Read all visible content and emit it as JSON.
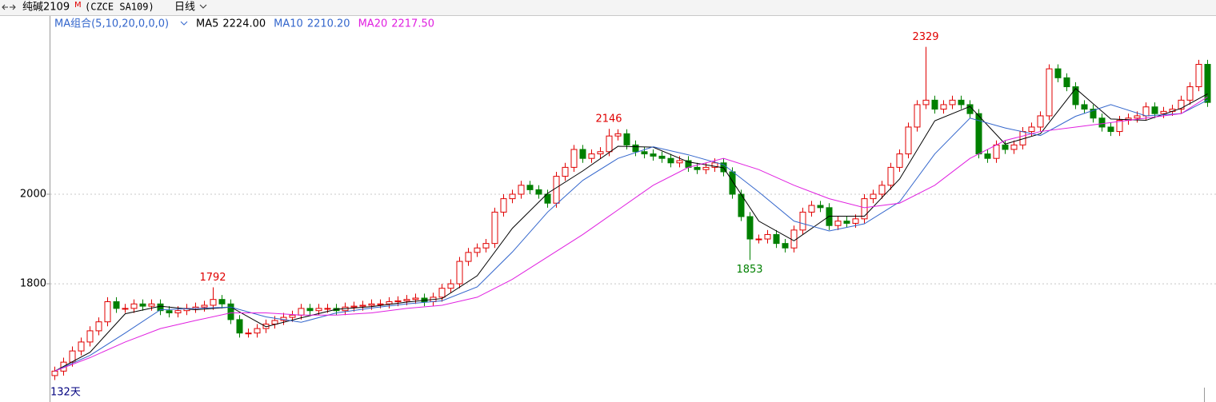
{
  "chart_data": {
    "type": "candlestick",
    "instrument": "纯碱2109",
    "flag": "M",
    "code": "(CZCE SA109)",
    "period": "日线",
    "indicator": "MA组合(5,10,20,0,0,0)",
    "footer_label": "132天",
    "up_color": "#e00000",
    "down_color": "#008000",
    "ylim": [
      1536,
      2398
    ],
    "yticks": [
      1800,
      2000
    ],
    "grid": true,
    "marked_highs": [
      18,
      63,
      99
    ],
    "marked_lows": [
      79
    ],
    "open": [
      1595,
      1605,
      1625,
      1650,
      1670,
      1695,
      1715,
      1760,
      1745,
      1745,
      1755,
      1750,
      1755,
      1740,
      1735,
      1740,
      1745,
      1748,
      1752,
      1765,
      1755,
      1720,
      1690,
      1690,
      1700,
      1710,
      1718,
      1725,
      1730,
      1745,
      1740,
      1745,
      1745,
      1740,
      1748,
      1750,
      1752,
      1755,
      1755,
      1760,
      1762,
      1765,
      1768,
      1760,
      1770,
      1790,
      1800,
      1850,
      1870,
      1880,
      1890,
      1960,
      1990,
      2000,
      2020,
      2010,
      2000,
      1980,
      2040,
      2060,
      2100,
      2080,
      2090,
      2095,
      2130,
      2135,
      2110,
      2095,
      2090,
      2085,
      2080,
      2070,
      2075,
      2060,
      2055,
      2060,
      2070,
      2050,
      2000,
      1950,
      1900,
      1900,
      1910,
      1890,
      1880,
      1920,
      1960,
      1975,
      1970,
      1930,
      1940,
      1935,
      1945,
      1990,
      2000,
      2020,
      2060,
      2090,
      2150,
      2200,
      2210,
      2190,
      2200,
      2210,
      2200,
      2180,
      2090,
      2080,
      2110,
      2100,
      2110,
      2140,
      2150,
      2175,
      2280,
      2260,
      2240,
      2200,
      2190,
      2170,
      2150,
      2140,
      2165,
      2170,
      2175,
      2195,
      2180,
      2185,
      2190,
      2210,
      2240,
      2290
    ],
    "high": [
      1615,
      1635,
      1660,
      1680,
      1705,
      1725,
      1770,
      1770,
      1755,
      1765,
      1765,
      1765,
      1765,
      1750,
      1750,
      1755,
      1758,
      1762,
      1792,
      1775,
      1765,
      1730,
      1700,
      1710,
      1720,
      1728,
      1735,
      1740,
      1755,
      1755,
      1755,
      1755,
      1755,
      1758,
      1760,
      1762,
      1765,
      1765,
      1770,
      1772,
      1775,
      1778,
      1778,
      1780,
      1800,
      1810,
      1860,
      1880,
      1890,
      1900,
      1970,
      2000,
      2010,
      2030,
      2030,
      2020,
      2010,
      2050,
      2070,
      2110,
      2110,
      2100,
      2105,
      2146,
      2145,
      2145,
      2120,
      2105,
      2100,
      2095,
      2090,
      2085,
      2085,
      2070,
      2070,
      2080,
      2080,
      2060,
      2010,
      1960,
      1910,
      1920,
      1920,
      1900,
      1930,
      1970,
      1985,
      1985,
      1980,
      1950,
      1950,
      1955,
      2000,
      2010,
      2030,
      2070,
      2100,
      2160,
      2210,
      2329,
      2220,
      2210,
      2220,
      2220,
      2210,
      2190,
      2100,
      2120,
      2120,
      2120,
      2150,
      2160,
      2185,
      2290,
      2290,
      2270,
      2250,
      2210,
      2200,
      2180,
      2160,
      2175,
      2180,
      2185,
      2205,
      2205,
      2195,
      2200,
      2220,
      2250,
      2300,
      2300
    ],
    "low": [
      1585,
      1595,
      1615,
      1640,
      1660,
      1685,
      1705,
      1735,
      1735,
      1735,
      1740,
      1740,
      1730,
      1725,
      1725,
      1730,
      1735,
      1738,
      1742,
      1745,
      1710,
      1680,
      1680,
      1680,
      1690,
      1700,
      1708,
      1715,
      1720,
      1730,
      1730,
      1735,
      1730,
      1730,
      1738,
      1740,
      1742,
      1745,
      1745,
      1750,
      1752,
      1755,
      1750,
      1750,
      1760,
      1780,
      1790,
      1840,
      1860,
      1870,
      1880,
      1950,
      1980,
      1990,
      2000,
      1990,
      1970,
      1970,
      2030,
      2050,
      2070,
      2070,
      2080,
      2085,
      2120,
      2100,
      2085,
      2080,
      2075,
      2070,
      2060,
      2060,
      2050,
      2045,
      2045,
      2050,
      2040,
      1990,
      1940,
      1853,
      1890,
      1890,
      1880,
      1870,
      1870,
      1910,
      1950,
      1960,
      1920,
      1920,
      1925,
      1925,
      1935,
      1980,
      1990,
      2010,
      2050,
      2080,
      2140,
      2190,
      2180,
      2180,
      2190,
      2190,
      2170,
      2080,
      2070,
      2070,
      2090,
      2090,
      2100,
      2130,
      2140,
      2165,
      2250,
      2230,
      2190,
      2180,
      2160,
      2140,
      2130,
      2130,
      2155,
      2160,
      2165,
      2170,
      2170,
      2175,
      2180,
      2200,
      2230,
      2195
    ],
    "close": [
      1605,
      1625,
      1650,
      1670,
      1695,
      1715,
      1760,
      1745,
      1745,
      1755,
      1750,
      1755,
      1740,
      1735,
      1740,
      1745,
      1748,
      1752,
      1765,
      1755,
      1720,
      1690,
      1690,
      1700,
      1710,
      1718,
      1725,
      1730,
      1745,
      1740,
      1745,
      1745,
      1740,
      1748,
      1750,
      1752,
      1755,
      1755,
      1760,
      1762,
      1765,
      1768,
      1760,
      1770,
      1790,
      1800,
      1850,
      1870,
      1880,
      1890,
      1960,
      1990,
      2000,
      2020,
      2010,
      2000,
      1980,
      2040,
      2060,
      2100,
      2080,
      2090,
      2095,
      2130,
      2135,
      2110,
      2095,
      2090,
      2085,
      2080,
      2070,
      2075,
      2060,
      2055,
      2060,
      2070,
      2050,
      2000,
      1950,
      1900,
      1900,
      1910,
      1890,
      1880,
      1920,
      1960,
      1975,
      1970,
      1930,
      1940,
      1935,
      1945,
      1990,
      2000,
      2020,
      2060,
      2090,
      2150,
      2200,
      2210,
      2190,
      2200,
      2210,
      2200,
      2180,
      2090,
      2080,
      2110,
      2100,
      2110,
      2140,
      2150,
      2175,
      2280,
      2260,
      2240,
      2200,
      2190,
      2170,
      2150,
      2140,
      2165,
      2170,
      2175,
      2195,
      2180,
      2185,
      2190,
      2210,
      2240,
      2290,
      2205
    ],
    "series": [
      {
        "name": "MA5",
        "current": "2224.00",
        "color": "#000000",
        "x": [
          0,
          4,
          8,
          12,
          16,
          20,
          24,
          28,
          32,
          36,
          40,
          44,
          48,
          52,
          56,
          60,
          64,
          68,
          72,
          76,
          80,
          84,
          88,
          92,
          96,
          100,
          104,
          108,
          112,
          116,
          120,
          124,
          128,
          131
        ],
        "values": [
          1605,
          1647,
          1733,
          1750,
          1742,
          1748,
          1704,
          1724,
          1743,
          1749,
          1759,
          1767,
          1818,
          1924,
          2002,
          2052,
          2107,
          2105,
          2072,
          2059,
          1940,
          1896,
          1951,
          1951,
          2034,
          2164,
          2196,
          2112,
          2135,
          2236,
          2168,
          2165,
          2192,
          2224
        ]
      },
      {
        "name": "MA10",
        "current": "2210.20",
        "color": "#3366cc",
        "x": [
          0,
          4,
          8,
          12,
          16,
          20,
          24,
          28,
          32,
          36,
          40,
          44,
          48,
          52,
          56,
          60,
          64,
          68,
          72,
          76,
          80,
          84,
          88,
          92,
          96,
          100,
          104,
          108,
          112,
          116,
          120,
          124,
          128,
          131
        ],
        "values": [
          1605,
          1640,
          1690,
          1742,
          1745,
          1748,
          1726,
          1714,
          1735,
          1746,
          1755,
          1762,
          1793,
          1871,
          1960,
          2031,
          2080,
          2106,
          2088,
          2066,
          2005,
          1940,
          1918,
          1934,
          1983,
          2090,
          2170,
          2148,
          2131,
          2174,
          2200,
          2175,
          2180,
          2210.2
        ]
      },
      {
        "name": "MA20",
        "current": "2217.50",
        "color": "#e020e0",
        "x": [
          0,
          4,
          8,
          12,
          16,
          20,
          24,
          28,
          32,
          36,
          40,
          44,
          48,
          52,
          56,
          60,
          64,
          68,
          72,
          76,
          80,
          84,
          88,
          92,
          96,
          100,
          104,
          108,
          112,
          116,
          120,
          124,
          128,
          131
        ],
        "values": [
          1605,
          1635,
          1670,
          1700,
          1718,
          1735,
          1735,
          1730,
          1730,
          1735,
          1745,
          1752,
          1770,
          1810,
          1860,
          1910,
          1965,
          2020,
          2060,
          2080,
          2055,
          2020,
          1990,
          1970,
          1980,
          2020,
          2080,
          2120,
          2140,
          2150,
          2160,
          2170,
          2180,
          2217.5
        ]
      }
    ]
  }
}
